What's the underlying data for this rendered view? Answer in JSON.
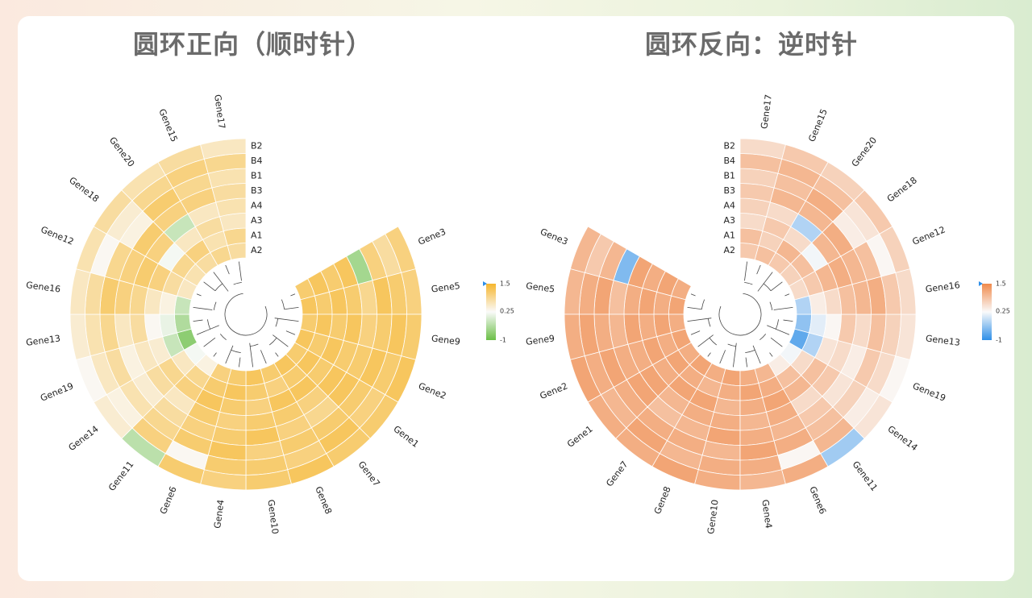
{
  "titles": {
    "left": "圆环正向（顺时针）",
    "right": "圆环反向：逆时针"
  },
  "legend": {
    "max_label": "1.5",
    "mid_label": "0.25",
    "min_label": "-1"
  },
  "colors": {
    "left_high": "#f6b62d",
    "left_low": "#6bbf47",
    "right_high": "#f08a4b",
    "right_low": "#2f8fe8",
    "mid": "#fafafa",
    "tree": "#444444"
  },
  "chart_data": [
    {
      "type": "heatmap",
      "variant": "circular",
      "direction": "clockwise",
      "title": "圆环正向（顺时针）",
      "rows": [
        "A2",
        "A1",
        "A3",
        "A4",
        "B3",
        "B1",
        "B4",
        "B2"
      ],
      "genes": [
        "Gene3",
        "Gene5",
        "Gene9",
        "Gene2",
        "Gene1",
        "Gene7",
        "Gene8",
        "Gene10",
        "Gene4",
        "Gene6",
        "Gene11",
        "Gene14",
        "Gene19",
        "Gene13",
        "Gene16",
        "Gene12",
        "Gene18",
        "Gene20",
        "Gene15",
        "Gene17"
      ],
      "values": [
        [
          1.1,
          1.2,
          1.1,
          1.2,
          -0.5,
          1.0,
          0.8,
          1.0
        ],
        [
          1.2,
          1.1,
          1.2,
          1.1,
          0.9,
          1.2,
          1.1,
          1.0
        ],
        [
          1.1,
          1.2,
          1.1,
          1.2,
          1.0,
          1.1,
          1.2,
          1.1
        ],
        [
          1.2,
          1.1,
          1.2,
          1.1,
          1.1,
          1.2,
          1.1,
          1.2
        ],
        [
          1.1,
          1.2,
          1.1,
          1.2,
          1.2,
          1.1,
          1.0,
          1.1
        ],
        [
          1.2,
          1.1,
          1.2,
          1.0,
          0.9,
          1.1,
          1.2,
          1.1
        ],
        [
          1.1,
          1.0,
          1.2,
          1.1,
          1.0,
          1.1,
          1.0,
          1.2
        ],
        [
          1.2,
          1.1,
          1.0,
          1.1,
          1.2,
          1.0,
          1.1,
          1.1
        ],
        [
          1.1,
          1.2,
          1.1,
          1.0,
          1.1,
          1.2,
          1.1,
          1.0
        ],
        [
          1.0,
          1.1,
          1.2,
          1.1,
          1.0,
          1.1,
          0.3,
          1.1
        ],
        [
          0.4,
          0.9,
          1.0,
          0.6,
          0.8,
          0.9,
          1.0,
          -0.3
        ],
        [
          0.2,
          0.6,
          0.9,
          0.8,
          0.5,
          0.7,
          0.4,
          0.5
        ],
        [
          -0.7,
          -0.2,
          0.5,
          0.6,
          0.4,
          0.8,
          0.6,
          0.3
        ],
        [
          -0.4,
          0.1,
          0.3,
          0.8,
          0.6,
          0.9,
          0.7,
          0.5
        ],
        [
          -0.2,
          0.4,
          0.6,
          0.9,
          1.0,
          1.1,
          0.8,
          0.6
        ],
        [
          0.6,
          0.8,
          1.0,
          1.1,
          1.0,
          0.9,
          0.3,
          0.7
        ],
        [
          0.7,
          0.9,
          0.2,
          1.0,
          1.1,
          0.4,
          0.5,
          0.8
        ],
        [
          0.8,
          1.0,
          0.6,
          -0.2,
          1.0,
          1.1,
          0.9,
          0.7
        ],
        [
          0.9,
          0.7,
          0.8,
          0.6,
          1.0,
          0.9,
          1.0,
          0.8
        ],
        [
          0.8,
          0.9,
          0.6,
          0.7,
          0.8,
          0.7,
          0.9,
          0.6
        ]
      ],
      "color_scale": {
        "min": -1,
        "mid": 0.25,
        "max": 1.5
      }
    },
    {
      "type": "heatmap",
      "variant": "circular",
      "direction": "counterclockwise",
      "title": "圆环反向：逆时针",
      "rows": [
        "A2",
        "A1",
        "A3",
        "A4",
        "B3",
        "B1",
        "B4",
        "B2"
      ],
      "genes": [
        "Gene3",
        "Gene5",
        "Gene9",
        "Gene2",
        "Gene1",
        "Gene7",
        "Gene8",
        "Gene10",
        "Gene4",
        "Gene6",
        "Gene11",
        "Gene14",
        "Gene19",
        "Gene13",
        "Gene16",
        "Gene12",
        "Gene18",
        "Gene20",
        "Gene15",
        "Gene17"
      ],
      "values": [
        [
          1.1,
          1.2,
          1.1,
          1.2,
          -0.5,
          1.0,
          0.8,
          1.0
        ],
        [
          1.2,
          1.1,
          1.2,
          1.1,
          0.9,
          1.2,
          1.1,
          1.0
        ],
        [
          1.1,
          1.2,
          1.1,
          1.2,
          1.0,
          1.1,
          1.2,
          1.1
        ],
        [
          1.2,
          1.1,
          1.2,
          1.1,
          1.1,
          1.2,
          1.1,
          1.2
        ],
        [
          1.1,
          1.2,
          1.1,
          1.2,
          1.2,
          1.1,
          1.0,
          1.1
        ],
        [
          1.2,
          1.1,
          1.2,
          1.0,
          0.9,
          1.1,
          1.2,
          1.1
        ],
        [
          1.1,
          1.0,
          1.2,
          1.1,
          1.0,
          1.1,
          1.0,
          1.2
        ],
        [
          1.2,
          1.1,
          1.0,
          1.1,
          1.2,
          1.0,
          1.1,
          1.1
        ],
        [
          1.1,
          1.2,
          1.1,
          1.0,
          1.1,
          1.2,
          1.1,
          1.0
        ],
        [
          1.0,
          1.1,
          1.2,
          1.1,
          1.0,
          1.1,
          0.3,
          1.1
        ],
        [
          0.4,
          0.9,
          1.0,
          0.6,
          0.8,
          0.9,
          1.0,
          -0.3
        ],
        [
          0.2,
          0.6,
          0.9,
          0.8,
          0.5,
          0.7,
          0.4,
          0.5
        ],
        [
          -0.7,
          -0.2,
          0.5,
          0.6,
          0.4,
          0.8,
          0.6,
          0.3
        ],
        [
          -0.4,
          0.1,
          0.3,
          0.8,
          0.6,
          0.9,
          0.7,
          0.5
        ],
        [
          -0.2,
          0.4,
          0.6,
          0.9,
          1.0,
          1.1,
          0.8,
          0.6
        ],
        [
          0.6,
          0.8,
          1.0,
          1.1,
          1.0,
          0.9,
          0.3,
          0.7
        ],
        [
          0.7,
          0.9,
          0.2,
          1.0,
          1.1,
          0.4,
          0.5,
          0.8
        ],
        [
          0.8,
          1.0,
          0.6,
          -0.2,
          1.0,
          1.1,
          0.9,
          0.7
        ],
        [
          0.9,
          0.7,
          0.8,
          0.6,
          1.0,
          0.9,
          1.0,
          0.8
        ],
        [
          0.8,
          0.9,
          0.6,
          0.7,
          0.8,
          0.7,
          0.9,
          0.6
        ]
      ],
      "color_scale": {
        "min": -1,
        "mid": 0.25,
        "max": 1.5
      }
    }
  ]
}
